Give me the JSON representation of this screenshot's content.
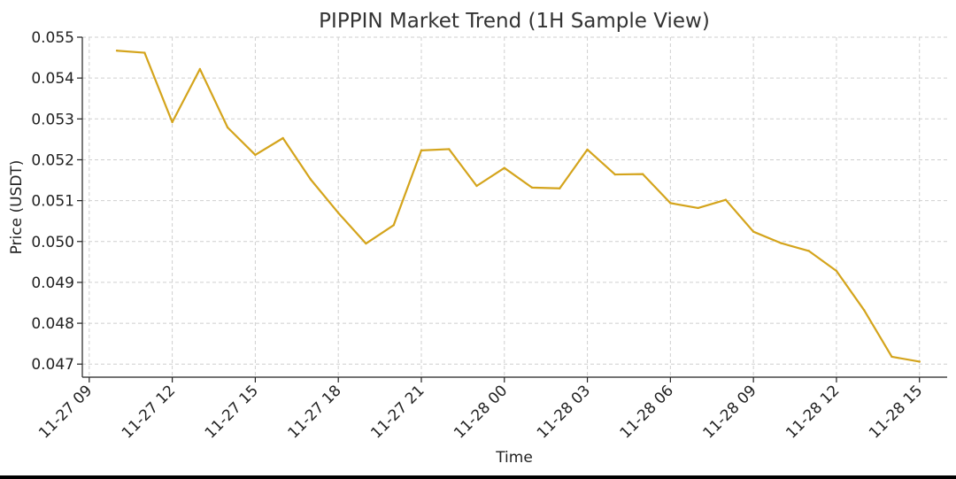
{
  "chart_data": {
    "type": "line",
    "title": "PIPPIN Market Trend (1H Sample View)",
    "xlabel": "Time",
    "ylabel": "Price (USDT)",
    "ylim": [
      0.04668,
      0.055
    ],
    "xlim": [
      "2025-11-27 08:45",
      "2025-11-28 16:00"
    ],
    "x_ticks": [
      {
        "label": "11-27 09",
        "t": "2025-11-27 09:00"
      },
      {
        "label": "11-27 12",
        "t": "2025-11-27 12:00"
      },
      {
        "label": "11-27 15",
        "t": "2025-11-27 15:00"
      },
      {
        "label": "11-27 18",
        "t": "2025-11-27 18:00"
      },
      {
        "label": "11-27 21",
        "t": "2025-11-27 21:00"
      },
      {
        "label": "11-28 00",
        "t": "2025-11-28 00:00"
      },
      {
        "label": "11-28 03",
        "t": "2025-11-28 03:00"
      },
      {
        "label": "11-28 06",
        "t": "2025-11-28 06:00"
      },
      {
        "label": "11-28 09",
        "t": "2025-11-28 09:00"
      },
      {
        "label": "11-28 12",
        "t": "2025-11-28 12:00"
      },
      {
        "label": "11-28 15",
        "t": "2025-11-28 15:00"
      }
    ],
    "y_ticks": [
      0.047,
      0.048,
      0.049,
      0.05,
      0.051,
      0.052,
      0.053,
      0.054,
      0.055
    ],
    "y_tick_labels": [
      "0.047",
      "0.048",
      "0.049",
      "0.050",
      "0.051",
      "0.052",
      "0.053",
      "0.054",
      "0.055"
    ],
    "grid": true,
    "series": [
      {
        "color": "#d4a41c",
        "points": [
          {
            "t": "2025-11-27 10:00",
            "y": 0.05467
          },
          {
            "t": "2025-11-27 11:00",
            "y": 0.05462
          },
          {
            "t": "2025-11-27 12:00",
            "y": 0.05292
          },
          {
            "t": "2025-11-27 13:00",
            "y": 0.05422
          },
          {
            "t": "2025-11-27 14:00",
            "y": 0.05279
          },
          {
            "t": "2025-11-27 15:00",
            "y": 0.05212
          },
          {
            "t": "2025-11-27 16:00",
            "y": 0.05253
          },
          {
            "t": "2025-11-27 17:00",
            "y": 0.05152
          },
          {
            "t": "2025-11-27 18:00",
            "y": 0.0507
          },
          {
            "t": "2025-11-27 19:00",
            "y": 0.04995
          },
          {
            "t": "2025-11-27 20:00",
            "y": 0.0504
          },
          {
            "t": "2025-11-27 21:00",
            "y": 0.05223
          },
          {
            "t": "2025-11-27 22:00",
            "y": 0.05226
          },
          {
            "t": "2025-11-27 23:00",
            "y": 0.05136
          },
          {
            "t": "2025-11-28 00:00",
            "y": 0.0518
          },
          {
            "t": "2025-11-28 01:00",
            "y": 0.05132
          },
          {
            "t": "2025-11-28 02:00",
            "y": 0.0513
          },
          {
            "t": "2025-11-28 03:00",
            "y": 0.05225
          },
          {
            "t": "2025-11-28 04:00",
            "y": 0.05164
          },
          {
            "t": "2025-11-28 05:00",
            "y": 0.05165
          },
          {
            "t": "2025-11-28 06:00",
            "y": 0.05094
          },
          {
            "t": "2025-11-28 07:00",
            "y": 0.05082
          },
          {
            "t": "2025-11-28 08:00",
            "y": 0.05102
          },
          {
            "t": "2025-11-28 09:00",
            "y": 0.05024
          },
          {
            "t": "2025-11-28 10:00",
            "y": 0.04996
          },
          {
            "t": "2025-11-28 11:00",
            "y": 0.04977
          },
          {
            "t": "2025-11-28 12:00",
            "y": 0.04928
          },
          {
            "t": "2025-11-28 13:00",
            "y": 0.04832
          },
          {
            "t": "2025-11-28 14:00",
            "y": 0.04718
          },
          {
            "t": "2025-11-28 15:00",
            "y": 0.04706
          }
        ]
      }
    ]
  }
}
